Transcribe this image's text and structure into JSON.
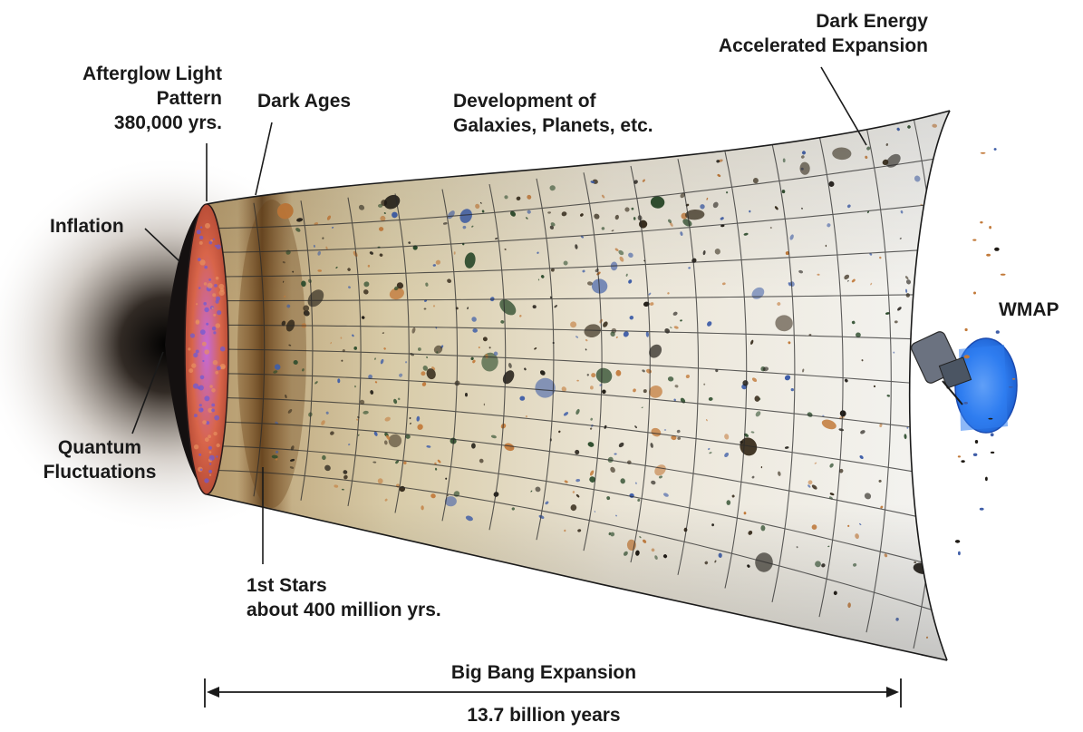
{
  "labels": {
    "afterglow": [
      "Afterglow Light",
      "Pattern",
      "380,000 yrs."
    ],
    "dark_ages": "Dark Ages",
    "development": [
      "Development of",
      "Galaxies, Planets, etc."
    ],
    "dark_energy": [
      "Dark Energy",
      "Accelerated Expansion"
    ],
    "inflation": "Inflation",
    "quantum": [
      "Quantum",
      "Fluctuations"
    ],
    "wmap": "WMAP",
    "first_stars": [
      "1st Stars",
      "about 400 million yrs."
    ],
    "expansion": "Big Bang Expansion",
    "duration": "13.7 billion years"
  },
  "colors": {
    "afterglow_disk": "#d8654a",
    "afterglow_speckle": "#6a5ad8",
    "dark_ages_band": "#8a5a2a",
    "galaxy_dark": "#1e1a14",
    "galaxy_orange": "#c27a3a",
    "galaxy_blue": "#3f5ea8",
    "wmap_dish": "#2f7df0",
    "text": "#1a1a1a"
  },
  "icons": {
    "satellite": "wmap-satellite-icon"
  }
}
